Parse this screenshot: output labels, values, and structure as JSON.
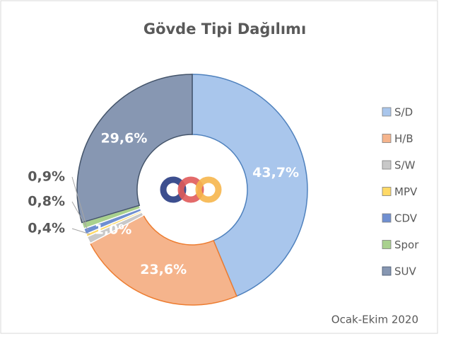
{
  "chart_data": {
    "type": "donut",
    "title": "Gövde Tipi Dağılımı",
    "categories": [
      "S/D",
      "H/B",
      "S/W",
      "MPV",
      "CDV",
      "Spor",
      "SUV"
    ],
    "values": [
      43.7,
      23.6,
      1.0,
      0.4,
      0.8,
      0.9,
      29.6
    ],
    "value_labels": [
      "43,7%",
      "23,6%",
      "1,0%",
      "0,4%",
      "0,8%",
      "0,9%",
      "29,6%"
    ],
    "colors": [
      "#a9c6ec",
      "#f5b48c",
      "#c8c8c8",
      "#ffd966",
      "#6f8fd1",
      "#a9d18e",
      "#8797b2"
    ],
    "annotation": "Ocak-Ekim 2020",
    "legend": "right"
  }
}
